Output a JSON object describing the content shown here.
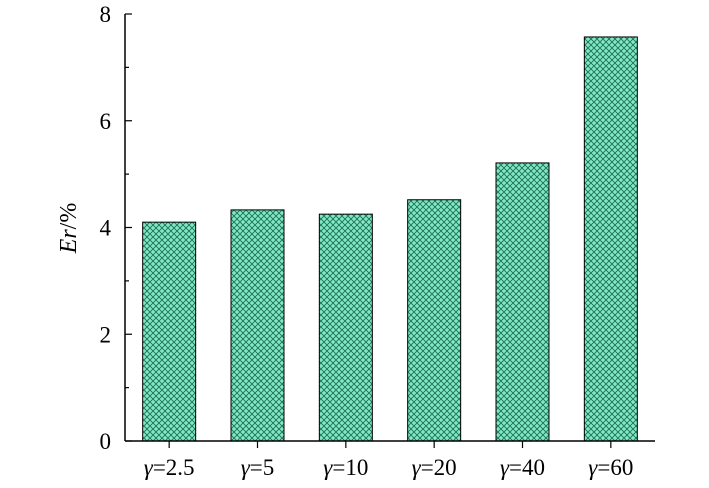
{
  "chart_data": {
    "type": "bar",
    "title": "",
    "xlabel": "",
    "ylabel": "Er/%",
    "ylabel_italic_part": "Er",
    "ylabel_plain_part": "/%",
    "category_prefix": "γ",
    "categories": [
      "γ=2.5",
      "γ=5",
      "γ=10",
      "γ=20",
      "γ=40",
      "γ=60"
    ],
    "category_values": [
      "=2.5",
      "=5",
      "=10",
      "=20",
      "=40",
      "=60"
    ],
    "values": [
      4.1,
      4.33,
      4.25,
      4.52,
      5.21,
      7.57
    ],
    "ylim": [
      0,
      8
    ],
    "yticks": [
      0,
      2,
      4,
      6,
      8
    ],
    "ytick_labels": [
      "0",
      "2",
      "4",
      "6",
      "8"
    ],
    "grid": false,
    "legend": "none",
    "bar_fill": "#7fe8c4",
    "bar_hatch": "#1f6f55",
    "bar_edge": "#000000"
  }
}
